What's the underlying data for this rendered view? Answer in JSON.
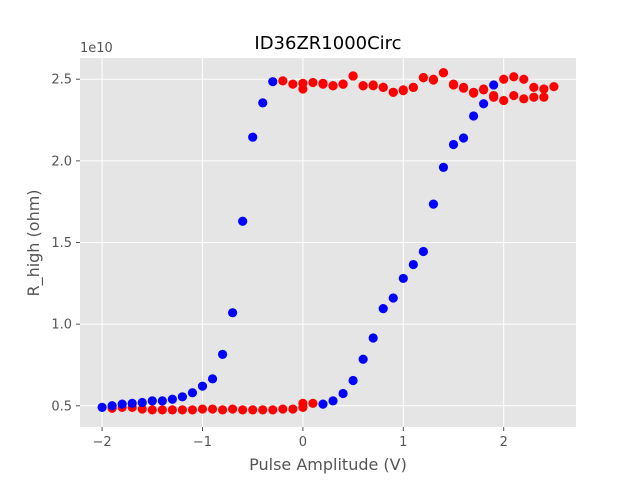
{
  "chart_data": {
    "type": "scatter",
    "title": "ID36ZR1000Circ",
    "xlabel": "Pulse Amplitude (V)",
    "ylabel": "R_high (ohm)",
    "y_offset_label": "1e10",
    "xlim": [
      -2.22,
      2.72
    ],
    "ylim": [
      0.37,
      2.63
    ],
    "xticks": [
      -2,
      -1,
      0,
      1,
      2
    ],
    "xtick_labels": [
      "−2",
      "−1",
      "0",
      "1",
      "2"
    ],
    "yticks": [
      0.5,
      1.0,
      1.5,
      2.0,
      2.5
    ],
    "ytick_labels": [
      "0.5",
      "1.0",
      "1.5",
      "2.0",
      "2.5"
    ],
    "grid": true,
    "style": "ggplot",
    "series": [
      {
        "color": "#ff0000",
        "x": [
          -1.9,
          -1.8,
          -1.7,
          -1.6,
          -1.5,
          -1.4,
          -1.3,
          -1.2,
          -1.1,
          -1.0,
          -0.9,
          -0.8,
          -0.7,
          -0.6,
          -0.5,
          -0.4,
          -0.3,
          -0.2,
          -0.1,
          0.0,
          0.0,
          0.1,
          0.2,
          0.3,
          0.4,
          0.5,
          0.6,
          0.7,
          0.8,
          0.9,
          1.0,
          1.1,
          1.2,
          1.3,
          1.4,
          1.5,
          1.6,
          1.7,
          1.8,
          1.9,
          2.0,
          2.1,
          2.2,
          2.3,
          2.4,
          2.5,
          2.4,
          2.3,
          2.2,
          2.1,
          2.0,
          1.9,
          1.8,
          1.7,
          1.6,
          1.5,
          1.4,
          1.3,
          1.2,
          1.1,
          1.0,
          0.9,
          0.8,
          0.7,
          0.6,
          0.5,
          0.4,
          0.3,
          0.2,
          0.1,
          0.0,
          0.0,
          -0.1,
          -0.2
        ],
        "y": [
          0.485,
          0.49,
          0.49,
          0.48,
          0.475,
          0.475,
          0.475,
          0.475,
          0.475,
          0.48,
          0.48,
          0.475,
          0.48,
          0.475,
          0.475,
          0.475,
          0.475,
          0.48,
          0.48,
          0.49,
          0.515,
          0.515,
          2.475,
          2.46,
          2.47,
          2.52,
          2.46,
          2.465,
          2.45,
          2.42,
          2.435,
          2.45,
          2.51,
          2.495,
          2.54,
          2.465,
          2.445,
          2.415,
          2.435,
          2.39,
          2.5,
          2.515,
          2.5,
          2.45,
          2.44,
          2.455,
          2.39,
          2.39,
          2.38,
          2.4,
          2.37,
          2.4,
          2.44,
          2.42,
          2.45,
          2.47,
          2.54,
          2.5,
          2.51,
          2.45,
          2.43,
          2.42,
          2.45,
          2.46,
          2.46,
          2.52,
          2.47,
          2.46,
          2.47,
          2.48,
          2.44,
          2.475,
          2.47,
          2.49
        ]
      },
      {
        "color": "#0000ff",
        "x": [
          -2.0,
          -1.9,
          -1.8,
          -1.7,
          -1.6,
          -1.5,
          -1.4,
          -1.3,
          -1.2,
          -1.1,
          -1.0,
          -0.9,
          -0.8,
          -0.7,
          -0.6,
          -0.5,
          -0.4,
          -0.3,
          0.2,
          0.3,
          0.4,
          0.5,
          0.6,
          0.7,
          0.8,
          0.9,
          1.0,
          1.1,
          1.2,
          1.3,
          1.4,
          1.5,
          1.6,
          1.7,
          1.8,
          1.9
        ],
        "y": [
          0.49,
          0.5,
          0.51,
          0.515,
          0.52,
          0.53,
          0.53,
          0.54,
          0.555,
          0.58,
          0.62,
          0.665,
          0.815,
          1.07,
          1.63,
          2.145,
          2.355,
          2.485,
          0.51,
          0.53,
          0.575,
          0.655,
          0.785,
          0.915,
          1.095,
          1.16,
          1.28,
          1.365,
          1.445,
          1.735,
          1.96,
          2.1,
          2.14,
          2.275,
          2.35,
          2.465
        ]
      }
    ]
  }
}
